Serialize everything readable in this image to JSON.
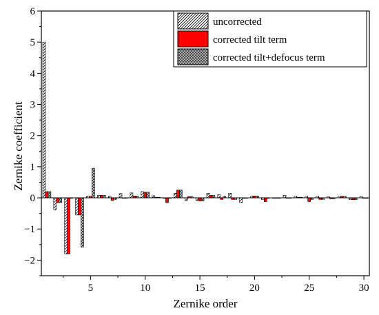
{
  "chart_data": {
    "type": "bar",
    "xlabel": "Zernike order",
    "ylabel": "Zernike coefficient",
    "xlim": [
      0.5,
      30.5
    ],
    "ylim": [
      -2.5,
      6
    ],
    "xticks": [
      5,
      10,
      15,
      20,
      25,
      30
    ],
    "yticks": [
      -2,
      -1,
      0,
      1,
      2,
      3,
      4,
      5,
      6
    ],
    "ytick_labels": [
      "−2",
      "−1",
      "0",
      "1",
      "2",
      "3",
      "4",
      "5",
      "6"
    ],
    "legend_position": "top-right",
    "x": [
      1,
      2,
      3,
      4,
      5,
      6,
      7,
      8,
      9,
      10,
      11,
      12,
      13,
      14,
      15,
      16,
      17,
      18,
      19,
      20,
      21,
      22,
      23,
      24,
      25,
      26,
      27,
      28,
      29,
      30
    ],
    "series": [
      {
        "name": "uncorrected",
        "pattern": "hatch",
        "color": "#ffffff",
        "values": [
          5.0,
          -0.38,
          -1.8,
          -0.55,
          0.05,
          0.08,
          0.05,
          0.14,
          0.16,
          0.2,
          0.07,
          0.0,
          0.15,
          -0.08,
          -0.08,
          0.15,
          0.1,
          0.15,
          -0.15,
          0.05,
          -0.05,
          0.0,
          0.08,
          0.05,
          0.05,
          0.05,
          0.03,
          0.05,
          -0.05,
          0.04
        ]
      },
      {
        "name": "corrected tilt term",
        "pattern": "solid",
        "color": "#ff0000",
        "values": [
          0.2,
          -0.15,
          -1.8,
          -0.55,
          0.05,
          0.08,
          -0.08,
          0.0,
          0.06,
          0.18,
          0.02,
          -0.15,
          0.25,
          0.04,
          -0.1,
          0.08,
          -0.05,
          -0.05,
          0.0,
          0.06,
          -0.12,
          0.0,
          0.0,
          0.02,
          -0.12,
          -0.05,
          -0.03,
          0.05,
          -0.06,
          0.0
        ]
      },
      {
        "name": "corrected tilt+defocus term",
        "pattern": "crosshatch",
        "color": "#bfbfbf",
        "values": [
          0.2,
          -0.15,
          0.0,
          -1.58,
          0.95,
          0.08,
          -0.05,
          0.0,
          0.06,
          0.18,
          0.02,
          0.0,
          0.25,
          0.04,
          -0.1,
          0.08,
          0.05,
          -0.05,
          0.0,
          0.06,
          0.0,
          0.0,
          0.0,
          0.02,
          -0.05,
          -0.05,
          -0.03,
          0.05,
          -0.06,
          0.0
        ]
      }
    ]
  }
}
